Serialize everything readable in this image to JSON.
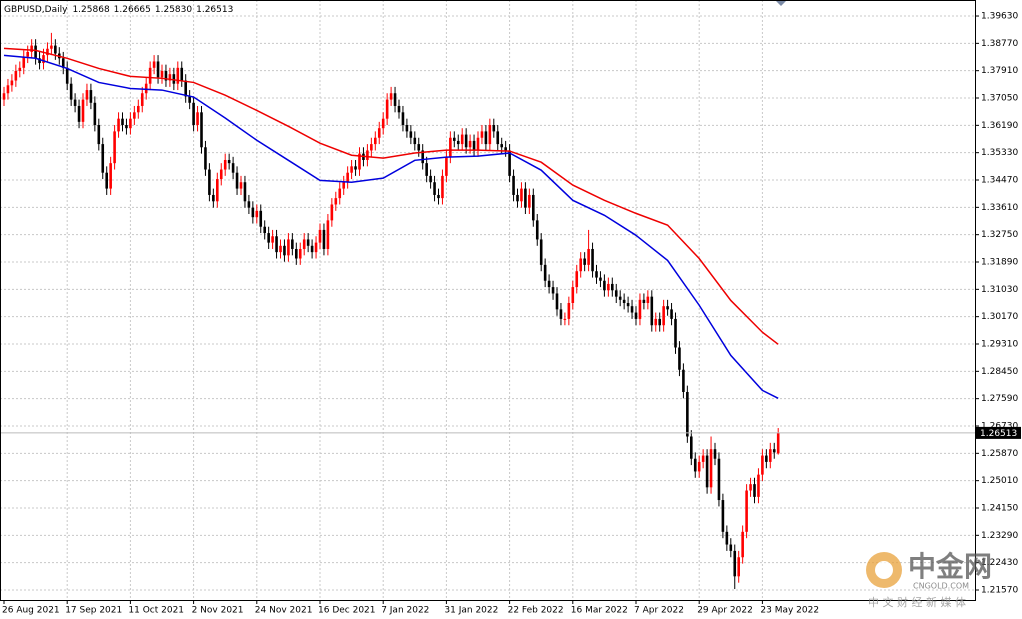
{
  "chart_data": {
    "type": "candlestick",
    "title": "GBPUSD,Daily",
    "ohlc_labels": [
      "1.25868",
      "1.26665",
      "1.25830",
      "1.26513"
    ],
    "categories": [
      "26 Aug 2021",
      null,
      null,
      null,
      null,
      null,
      null,
      null,
      null,
      null,
      null,
      null,
      null,
      null,
      null,
      null,
      "17 Sep 2021",
      null,
      null,
      null,
      null,
      null,
      null,
      null,
      null,
      null,
      null,
      null,
      null,
      null,
      null,
      null,
      "11 Oct 2021",
      null,
      null,
      null,
      null,
      null,
      null,
      null,
      null,
      null,
      null,
      null,
      null,
      null,
      null,
      null,
      "2 Nov 2021",
      null,
      null,
      null,
      null,
      null,
      null,
      null,
      null,
      null,
      null,
      null,
      null,
      null,
      null,
      null,
      "24 Nov 2021",
      null,
      null,
      null,
      null,
      null,
      null,
      null,
      null,
      null,
      null,
      null,
      null,
      null,
      null,
      null,
      "16 Dec 2021",
      null,
      null,
      null,
      null,
      null,
      null,
      null,
      null,
      null,
      null,
      null,
      null,
      null,
      null,
      null,
      "7 Jan 2022",
      null,
      null,
      null,
      null,
      null,
      null,
      null,
      null,
      null,
      null,
      null,
      null,
      null,
      null,
      null,
      "31 Jan 2022",
      null,
      null,
      null,
      null,
      null,
      null,
      null,
      null,
      null,
      null,
      null,
      null,
      null,
      null,
      null,
      "22 Feb 2022",
      null,
      null,
      null,
      null,
      null,
      null,
      null,
      null,
      null,
      null,
      null,
      null,
      null,
      null,
      null,
      "16 Mar 2022",
      null,
      null,
      null,
      null,
      null,
      null,
      null,
      null,
      null,
      null,
      null,
      null,
      null,
      null,
      null,
      "7 Apr 2022",
      null,
      null,
      null,
      null,
      null,
      null,
      null,
      null,
      null,
      null,
      null,
      null,
      null,
      null,
      null,
      "29 Apr 2022",
      null,
      null,
      null,
      null,
      null,
      null,
      null,
      null,
      null,
      null,
      null,
      null,
      null,
      null,
      null,
      "23 May 2022",
      null,
      null,
      null,
      null
    ],
    "open": [
      1.37,
      1.372,
      1.3745,
      1.376,
      1.379,
      1.38,
      1.3835,
      1.385,
      1.387,
      1.383,
      1.3815,
      1.384,
      1.386,
      1.387,
      1.3845,
      1.383,
      1.38,
      1.375,
      1.37,
      1.368,
      1.363,
      1.37,
      1.373,
      1.369,
      1.362,
      1.356,
      1.347,
      1.342,
      1.35,
      1.36,
      1.364,
      1.362,
      1.361,
      1.364,
      1.366,
      1.368,
      1.372,
      1.375,
      1.38,
      1.382,
      1.377,
      1.379,
      1.376,
      1.378,
      1.375,
      1.38,
      1.376,
      1.371,
      1.369,
      1.362,
      1.366,
      1.355,
      1.348,
      1.34,
      1.338,
      1.345,
      1.348,
      1.351,
      1.35,
      1.347,
      1.342,
      1.344,
      1.338,
      1.336,
      1.333,
      1.335,
      1.33,
      1.328,
      1.325,
      1.327,
      1.322,
      1.324,
      1.321,
      1.326,
      1.323,
      1.32,
      1.323,
      1.326,
      1.324,
      1.322,
      1.325,
      1.329,
      1.323,
      1.332,
      1.337,
      1.339,
      1.342,
      1.344,
      1.347,
      1.349,
      1.348,
      1.353,
      1.351,
      1.354,
      1.356,
      1.358,
      1.361,
      1.364,
      1.37,
      1.372,
      1.368,
      1.366,
      1.362,
      1.36,
      1.358,
      1.356,
      1.354,
      1.35,
      1.346,
      1.344,
      1.34,
      1.339,
      1.346,
      1.352,
      1.358,
      1.357,
      1.356,
      1.359,
      1.355,
      1.357,
      1.354,
      1.358,
      1.36,
      1.356,
      1.362,
      1.36,
      1.356,
      1.355,
      1.354,
      1.346,
      1.34,
      1.338,
      1.342,
      1.336,
      1.34,
      1.332,
      1.326,
      1.318,
      1.313,
      1.311,
      1.309,
      1.304,
      1.301,
      1.301,
      1.306,
      1.311,
      1.316,
      1.32,
      1.318,
      1.323,
      1.316,
      1.314,
      1.313,
      1.31,
      1.312,
      1.31,
      1.308,
      1.307,
      1.306,
      1.305,
      1.303,
      1.301,
      1.307,
      1.306,
      1.308,
      1.299,
      1.301,
      1.299,
      1.305,
      1.304,
      1.301,
      1.292,
      1.285,
      1.278,
      1.264,
      1.257,
      1.253,
      1.256,
      1.258,
      1.248,
      1.26,
      1.257,
      1.244,
      1.234,
      1.23,
      1.228,
      1.22,
      1.226,
      1.234,
      1.247,
      1.249,
      1.245,
      1.252,
      1.258,
      1.256,
      1.26,
      1.25868
    ],
    "high": [
      1.374,
      1.3765,
      1.378,
      1.381,
      1.382,
      1.3855,
      1.387,
      1.389,
      1.389,
      1.385,
      1.386,
      1.388,
      1.391,
      1.389,
      1.3865,
      1.385,
      1.382,
      1.377,
      1.372,
      1.37,
      1.372,
      1.375,
      1.375,
      1.371,
      1.364,
      1.358,
      1.349,
      1.352,
      1.362,
      1.366,
      1.366,
      1.364,
      1.366,
      1.368,
      1.37,
      1.374,
      1.377,
      1.382,
      1.384,
      1.384,
      1.381,
      1.381,
      1.38,
      1.38,
      1.382,
      1.382,
      1.378,
      1.373,
      1.371,
      1.368,
      1.368,
      1.357,
      1.35,
      1.342,
      1.347,
      1.35,
      1.353,
      1.353,
      1.352,
      1.349,
      1.346,
      1.346,
      1.34,
      1.338,
      1.337,
      1.337,
      1.332,
      1.33,
      1.329,
      1.329,
      1.326,
      1.326,
      1.328,
      1.328,
      1.325,
      1.325,
      1.328,
      1.328,
      1.326,
      1.327,
      1.331,
      1.331,
      1.334,
      1.339,
      1.341,
      1.344,
      1.346,
      1.349,
      1.351,
      1.351,
      1.355,
      1.355,
      1.356,
      1.358,
      1.36,
      1.363,
      1.366,
      1.372,
      1.374,
      1.374,
      1.37,
      1.368,
      1.364,
      1.362,
      1.36,
      1.358,
      1.356,
      1.352,
      1.348,
      1.346,
      1.342,
      1.348,
      1.354,
      1.36,
      1.36,
      1.359,
      1.361,
      1.361,
      1.359,
      1.359,
      1.36,
      1.362,
      1.362,
      1.364,
      1.364,
      1.362,
      1.358,
      1.357,
      1.356,
      1.348,
      1.342,
      1.344,
      1.344,
      1.342,
      1.342,
      1.334,
      1.328,
      1.32,
      1.315,
      1.313,
      1.311,
      1.306,
      1.303,
      1.308,
      1.313,
      1.318,
      1.322,
      1.322,
      1.329,
      1.325,
      1.318,
      1.316,
      1.315,
      1.314,
      1.314,
      1.312,
      1.31,
      1.309,
      1.308,
      1.307,
      1.305,
      1.309,
      1.309,
      1.31,
      1.31,
      1.303,
      1.303,
      1.307,
      1.307,
      1.306,
      1.303,
      1.294,
      1.287,
      1.28,
      1.266,
      1.259,
      1.258,
      1.26,
      1.26,
      1.264,
      1.262,
      1.259,
      1.246,
      1.236,
      1.232,
      1.23,
      1.228,
      1.236,
      1.249,
      1.251,
      1.251,
      1.254,
      1.26,
      1.26,
      1.262,
      1.262,
      1.26665
    ],
    "low": [
      1.368,
      1.37,
      1.3725,
      1.374,
      1.377,
      1.378,
      1.3815,
      1.383,
      1.381,
      1.3795,
      1.3795,
      1.382,
      1.384,
      1.3825,
      1.381,
      1.378,
      1.373,
      1.368,
      1.366,
      1.361,
      1.361,
      1.368,
      1.367,
      1.36,
      1.354,
      1.345,
      1.34,
      1.34,
      1.348,
      1.358,
      1.36,
      1.359,
      1.359,
      1.362,
      1.364,
      1.366,
      1.37,
      1.373,
      1.378,
      1.375,
      1.375,
      1.374,
      1.374,
      1.373,
      1.373,
      1.374,
      1.369,
      1.367,
      1.36,
      1.36,
      1.353,
      1.346,
      1.338,
      1.336,
      1.336,
      1.343,
      1.346,
      1.348,
      1.345,
      1.34,
      1.34,
      1.336,
      1.334,
      1.331,
      1.331,
      1.328,
      1.326,
      1.323,
      1.323,
      1.32,
      1.32,
      1.319,
      1.319,
      1.321,
      1.318,
      1.318,
      1.321,
      1.322,
      1.32,
      1.32,
      1.323,
      1.321,
      1.321,
      1.33,
      1.335,
      1.337,
      1.34,
      1.342,
      1.345,
      1.346,
      1.346,
      1.349,
      1.349,
      1.352,
      1.354,
      1.356,
      1.359,
      1.362,
      1.368,
      1.366,
      1.364,
      1.36,
      1.358,
      1.356,
      1.354,
      1.352,
      1.348,
      1.344,
      1.342,
      1.338,
      1.337,
      1.337,
      1.344,
      1.35,
      1.355,
      1.354,
      1.354,
      1.353,
      1.353,
      1.352,
      1.352,
      1.356,
      1.354,
      1.354,
      1.358,
      1.354,
      1.353,
      1.352,
      1.344,
      1.338,
      1.336,
      1.336,
      1.334,
      1.334,
      1.33,
      1.324,
      1.316,
      1.311,
      1.309,
      1.307,
      1.302,
      1.299,
      1.299,
      1.299,
      1.304,
      1.309,
      1.314,
      1.316,
      1.316,
      1.314,
      1.312,
      1.311,
      1.308,
      1.308,
      1.308,
      1.306,
      1.305,
      1.304,
      1.303,
      1.301,
      1.299,
      1.299,
      1.304,
      1.304,
      1.297,
      1.297,
      1.297,
      1.297,
      1.302,
      1.299,
      1.29,
      1.283,
      1.276,
      1.262,
      1.255,
      1.251,
      1.251,
      1.254,
      1.246,
      1.246,
      1.255,
      1.242,
      1.232,
      1.228,
      1.226,
      1.216,
      1.218,
      1.224,
      1.232,
      1.245,
      1.243,
      1.243,
      1.25,
      1.254,
      1.254,
      1.257,
      1.2583
    ],
    "close": [
      1.372,
      1.3745,
      1.376,
      1.379,
      1.38,
      1.3835,
      1.385,
      1.387,
      1.383,
      1.3815,
      1.384,
      1.386,
      1.387,
      1.3845,
      1.383,
      1.38,
      1.375,
      1.37,
      1.368,
      1.363,
      1.37,
      1.373,
      1.369,
      1.362,
      1.356,
      1.347,
      1.342,
      1.35,
      1.36,
      1.364,
      1.362,
      1.361,
      1.364,
      1.366,
      1.368,
      1.372,
      1.375,
      1.38,
      1.382,
      1.377,
      1.379,
      1.376,
      1.378,
      1.375,
      1.38,
      1.376,
      1.371,
      1.369,
      1.362,
      1.366,
      1.355,
      1.348,
      1.34,
      1.338,
      1.345,
      1.348,
      1.351,
      1.35,
      1.347,
      1.342,
      1.344,
      1.338,
      1.336,
      1.333,
      1.335,
      1.33,
      1.328,
      1.325,
      1.327,
      1.322,
      1.324,
      1.321,
      1.326,
      1.323,
      1.32,
      1.323,
      1.326,
      1.324,
      1.322,
      1.325,
      1.329,
      1.323,
      1.332,
      1.337,
      1.339,
      1.342,
      1.344,
      1.347,
      1.349,
      1.348,
      1.353,
      1.351,
      1.354,
      1.356,
      1.358,
      1.361,
      1.364,
      1.37,
      1.372,
      1.368,
      1.366,
      1.362,
      1.36,
      1.358,
      1.356,
      1.354,
      1.35,
      1.346,
      1.344,
      1.34,
      1.339,
      1.346,
      1.352,
      1.358,
      1.357,
      1.356,
      1.359,
      1.355,
      1.357,
      1.354,
      1.358,
      1.36,
      1.356,
      1.362,
      1.36,
      1.356,
      1.355,
      1.354,
      1.346,
      1.34,
      1.338,
      1.342,
      1.336,
      1.34,
      1.332,
      1.326,
      1.318,
      1.313,
      1.311,
      1.309,
      1.304,
      1.301,
      1.301,
      1.306,
      1.311,
      1.316,
      1.32,
      1.318,
      1.323,
      1.316,
      1.314,
      1.313,
      1.31,
      1.312,
      1.31,
      1.308,
      1.307,
      1.306,
      1.305,
      1.303,
      1.301,
      1.307,
      1.306,
      1.308,
      1.299,
      1.301,
      1.299,
      1.305,
      1.304,
      1.301,
      1.292,
      1.285,
      1.278,
      1.264,
      1.257,
      1.253,
      1.256,
      1.258,
      1.248,
      1.26,
      1.257,
      1.244,
      1.234,
      1.23,
      1.228,
      1.22,
      1.226,
      1.234,
      1.247,
      1.249,
      1.245,
      1.252,
      1.258,
      1.256,
      1.26,
      1.259,
      1.26513
    ],
    "up_color": "#ff0000",
    "down_color": "#000000",
    "lines": [
      {
        "color": "#0000dd",
        "x": [
          0,
          8,
          16,
          24,
          32,
          40,
          48,
          56,
          64,
          72,
          80,
          88,
          96,
          104,
          112,
          120,
          128,
          136,
          144,
          152,
          160,
          168,
          176,
          184,
          192,
          196
        ],
        "values": [
          1.3839,
          1.383,
          1.3798,
          1.3754,
          1.3735,
          1.373,
          1.3708,
          1.3642,
          1.3572,
          1.3509,
          1.3446,
          1.344,
          1.3453,
          1.3509,
          1.3519,
          1.3522,
          1.3532,
          1.3478,
          1.3383,
          1.3336,
          1.3273,
          1.3194,
          1.3053,
          1.2895,
          1.2785,
          1.276
        ]
      },
      {
        "color": "#ee0000",
        "x": [
          0,
          8,
          16,
          24,
          32,
          40,
          48,
          56,
          64,
          72,
          80,
          88,
          96,
          104,
          112,
          120,
          128,
          136,
          144,
          152,
          160,
          168,
          176,
          184,
          192,
          196
        ],
        "values": [
          1.3861,
          1.3855,
          1.383,
          1.3798,
          1.3773,
          1.3767,
          1.3754,
          1.3714,
          1.3666,
          1.3616,
          1.3563,
          1.3525,
          1.3516,
          1.3532,
          1.3541,
          1.3541,
          1.3538,
          1.3503,
          1.3431,
          1.3383,
          1.3342,
          1.3305,
          1.32,
          1.3068,
          1.2968,
          1.293
        ]
      }
    ],
    "ylim": [
      1.21255,
      1.40134
    ],
    "yticks": [
      {
        "value": 1.3963,
        "label": "1.39630"
      },
      {
        "value": 1.3877,
        "label": "1.38770"
      },
      {
        "value": 1.3791,
        "label": "1.37910"
      },
      {
        "value": 1.3705,
        "label": "1.37050"
      },
      {
        "value": 1.3619,
        "label": "1.36190"
      },
      {
        "value": 1.3533,
        "label": "1.35330"
      },
      {
        "value": 1.3447,
        "label": "1.34470"
      },
      {
        "value": 1.3361,
        "label": "1.33610"
      },
      {
        "value": 1.3275,
        "label": "1.32750"
      },
      {
        "value": 1.3189,
        "label": "1.31890"
      },
      {
        "value": 1.3103,
        "label": "1.31030"
      },
      {
        "value": 1.3017,
        "label": "1.30170"
      },
      {
        "value": 1.2931,
        "label": "1.29310"
      },
      {
        "value": 1.2845,
        "label": "1.28450"
      },
      {
        "value": 1.2759,
        "label": "1.27590"
      },
      {
        "value": 1.2673,
        "label": "1.26730"
      },
      {
        "value": 1.2587,
        "label": "1.25870"
      },
      {
        "value": 1.2501,
        "label": "1.25010"
      },
      {
        "value": 1.2415,
        "label": "1.24150"
      },
      {
        "value": 1.2329,
        "label": "1.23290"
      },
      {
        "value": 1.2243,
        "label": "1.22430"
      },
      {
        "value": 1.2157,
        "label": "1.21570"
      }
    ],
    "grid": true
  },
  "watermark": {
    "brand": "中金网",
    "site": "CNGOLD.COM",
    "slogan": "中 文 财 经 新 媒 体"
  }
}
